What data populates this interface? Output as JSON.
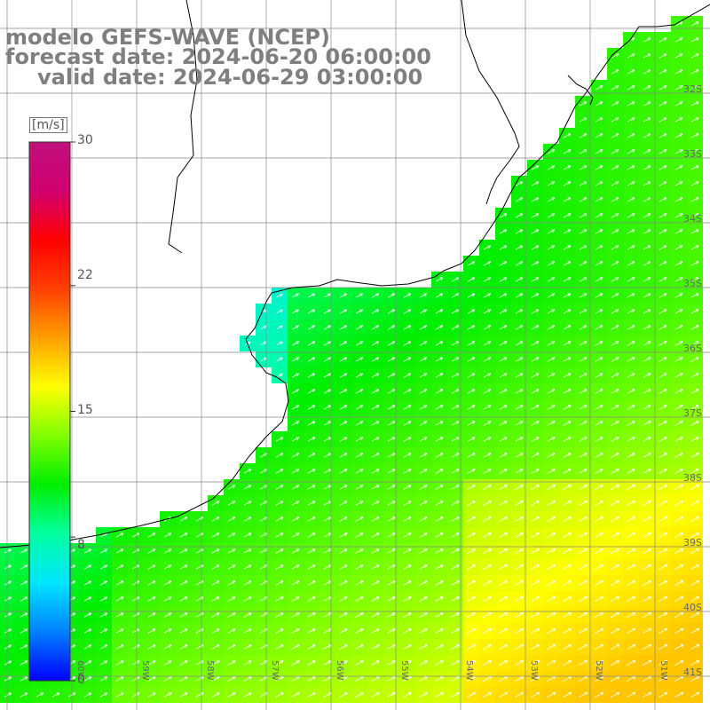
{
  "title": {
    "line1": "modelo GEFS-WAVE (NCEP)",
    "line2": "forecast date: 2024-06-20 06:00:00",
    "line3": "valid date: 2024-06-29 03:00:00"
  },
  "colorbar": {
    "unit": "[m/s]",
    "ticks": [
      "30",
      "22",
      "15",
      "8",
      "0"
    ],
    "tick_values": [
      30,
      22,
      15,
      8,
      0
    ],
    "range": [
      0,
      30
    ],
    "stops": [
      "#0000ff",
      "#0080ff",
      "#00e6ff",
      "#00ffa0",
      "#00ee00",
      "#80ff00",
      "#ffff00",
      "#ffa000",
      "#ff4000",
      "#ff0000",
      "#d00070",
      "#c0107a"
    ]
  },
  "axes": {
    "lat_labels": [
      "32S",
      "33S",
      "34S",
      "35S",
      "36S",
      "37S",
      "38S",
      "39S",
      "40S",
      "41S"
    ],
    "lon_labels": [
      "60W",
      "59W",
      "58W",
      "57W",
      "56W",
      "55W",
      "54W",
      "53W",
      "52W",
      "51W"
    ],
    "lon_range": [
      -61,
      -50
    ],
    "lat_range": [
      -41.5,
      -30.5
    ]
  },
  "colors": {
    "land": "#ffffff",
    "grid": "#888888",
    "coast": "#000000",
    "title": "#7f7f7f"
  },
  "chart_data": {
    "type": "heatmap",
    "field": "wind speed with direction vectors",
    "units": "m/s",
    "value_range": [
      0,
      30
    ],
    "approx_regions": [
      {
        "area": "Rio de la Plata estuary",
        "speed": 7
      },
      {
        "area": "nearshore Uruguay/Buenos Aires coast",
        "speed": 8
      },
      {
        "area": "open shelf 35S-37S",
        "speed": 12
      },
      {
        "area": "offshore 38S-41S, 53W-51W",
        "speed": 16
      }
    ],
    "vector_direction": "toward northeast"
  }
}
